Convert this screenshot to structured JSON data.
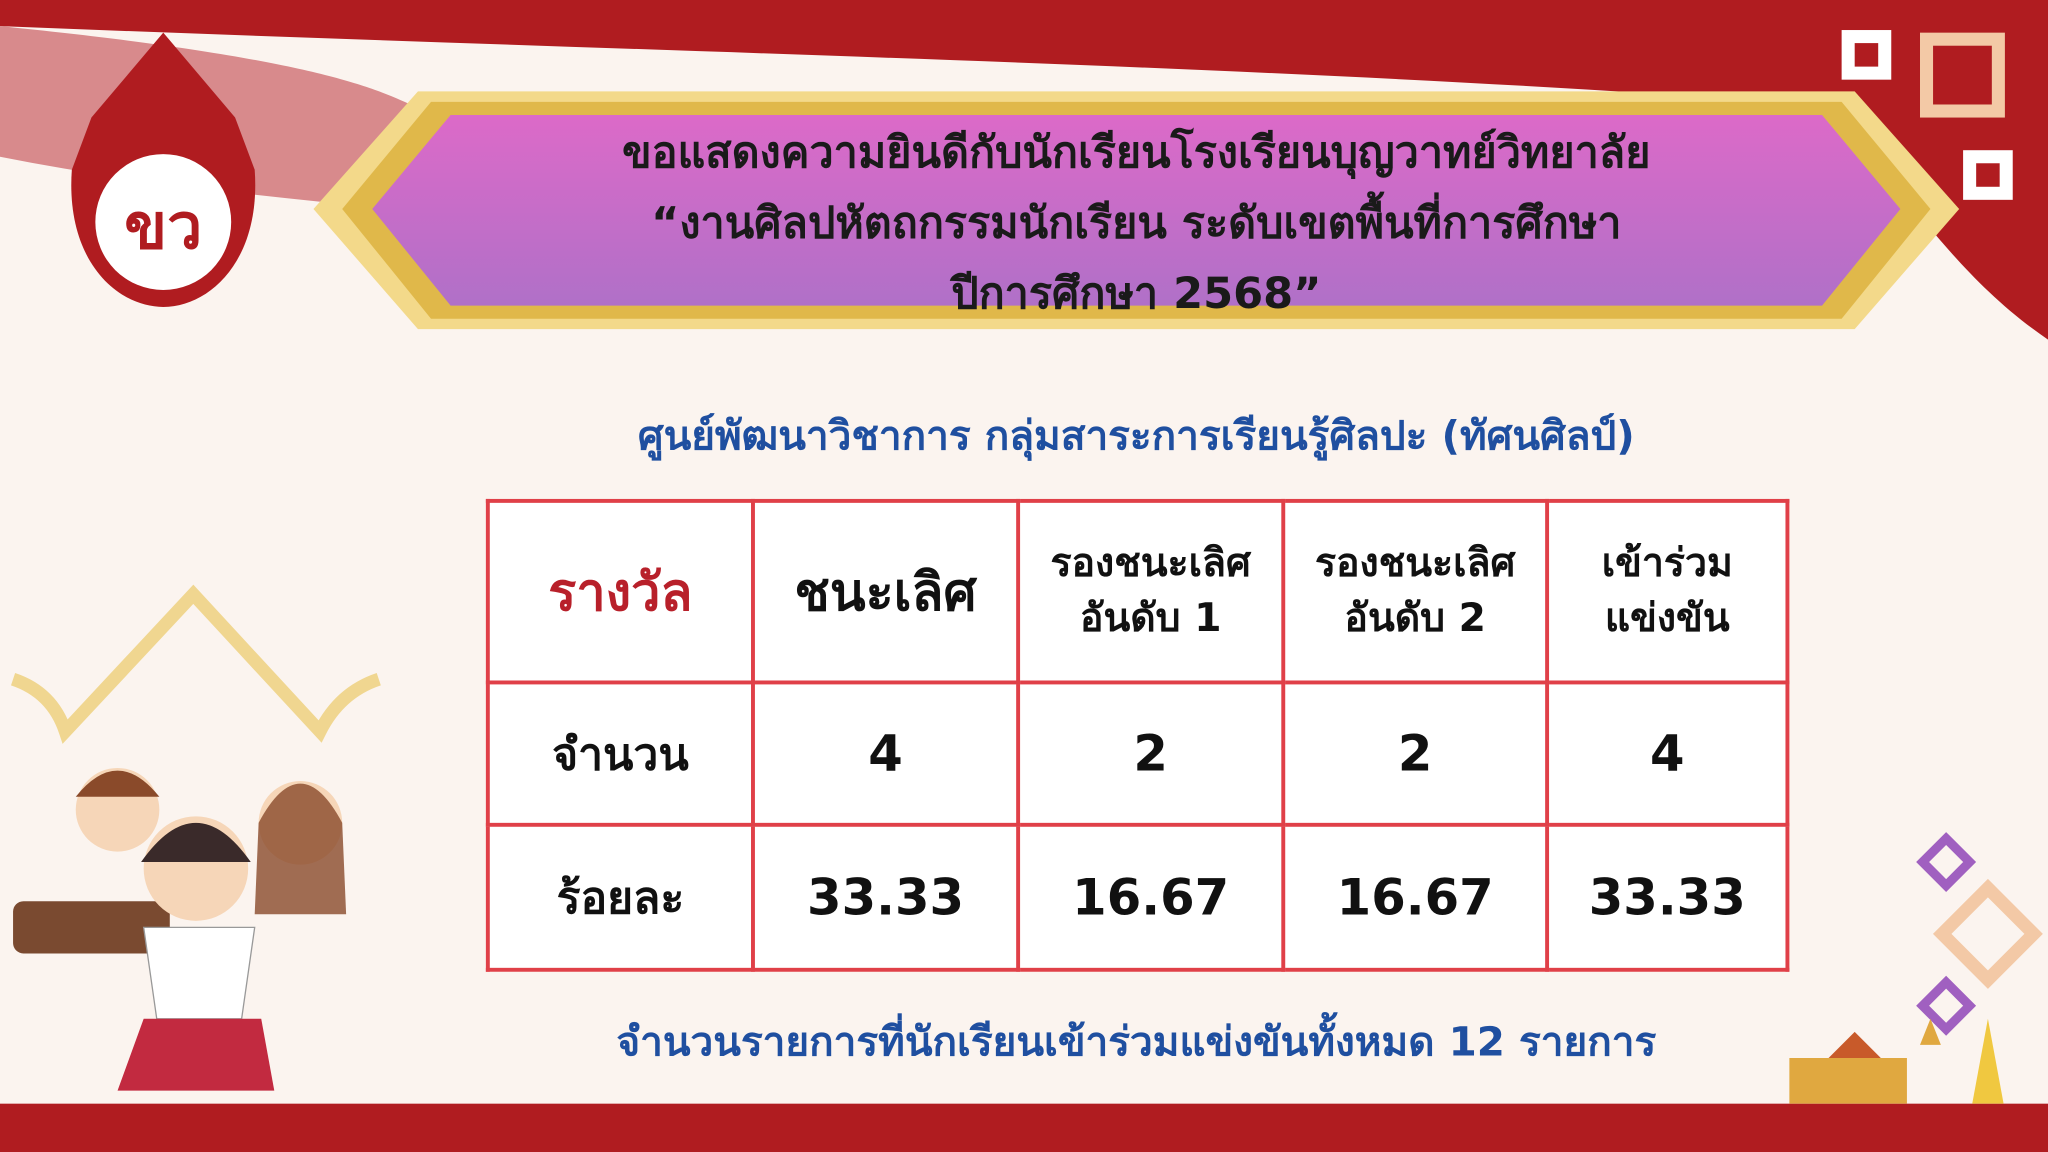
{
  "banner": {
    "line1": "ขอแสดงความยินดีกับนักเรียนโรงเรียนบุญวาทย์วิทยาลัย",
    "line2": "“งานศิลปหัตถกรรมนักเรียน ระดับเขตพื้นที่การศึกษา",
    "line3": "ปีการศึกษา 2568”"
  },
  "subtitle": "ศูนย์พัฒนาวิชาการ กลุ่มสาระการเรียนรู้ศิลปะ (ทัศนศิลป์)",
  "table": {
    "headers": [
      "รางวัล",
      "ชนะเลิศ",
      "รองชนะเลิศ อันดับ 1",
      "รองชนะเลิศ อันดับ 2",
      "เข้าร่วม แข่งขัน"
    ],
    "rows": [
      {
        "label": "จำนวน",
        "values": [
          "4",
          "2",
          "2",
          "4"
        ]
      },
      {
        "label": "ร้อยละ",
        "values": [
          "33.33",
          "16.67",
          "16.67",
          "33.33"
        ]
      }
    ]
  },
  "footer": "จำนวนรายการที่นักเรียนเข้าร่วมแข่งขันทั้งหมด 12 รายการ",
  "logo": {
    "text": "ขว"
  },
  "colors": {
    "red": "#b01c20",
    "banner_pink": "#d86cc8",
    "gold": "#e8c24a",
    "blue": "#1f4fa0"
  }
}
